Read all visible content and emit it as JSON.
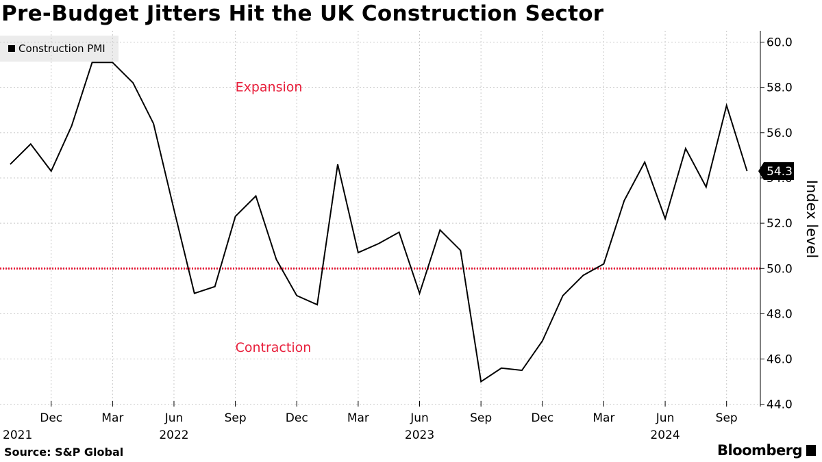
{
  "title": "Pre-Budget Jitters Hit the UK Construction Sector",
  "legend": {
    "label": "Construction PMI"
  },
  "source": "Source: S&P Global",
  "brand": "Bloomberg",
  "colors": {
    "line": "#000000",
    "threshold": "#e8203c",
    "annotation": "#e8203c",
    "grid": "#c8c8c8",
    "legend_bg": "#ececec"
  },
  "chart_data": {
    "type": "line",
    "title": "Pre-Budget Jitters Hit the UK Construction Sector",
    "ylabel": "Index level",
    "xlabel": "",
    "ylim": [
      43.9,
      60.5
    ],
    "y_ticks": [
      44.0,
      46.0,
      48.0,
      50.0,
      52.0,
      54.0,
      56.0,
      58.0,
      60.0
    ],
    "y_tick_labels": [
      "44.0",
      "46.0",
      "48.0",
      "50.0",
      "52.0",
      "54.0",
      "56.0",
      "58.0",
      "60.0"
    ],
    "x_tick_labels": [
      "Dec",
      "Mar",
      "Jun",
      "Sep",
      "Dec",
      "Mar",
      "Jun",
      "Sep",
      "Dec",
      "Mar",
      "Jun",
      "Sep"
    ],
    "x_tick_months": [
      "2021-12",
      "2022-03",
      "2022-06",
      "2022-09",
      "2022-12",
      "2023-03",
      "2023-06",
      "2023-09",
      "2023-12",
      "2024-03",
      "2024-06",
      "2024-09"
    ],
    "year_labels": [
      {
        "label": "2021",
        "month": "2021-12"
      },
      {
        "label": "2022",
        "month": "2022-06"
      },
      {
        "label": "2023",
        "month": "2023-06"
      },
      {
        "label": "2024",
        "month": "2024-06"
      }
    ],
    "x_start": "2021-10",
    "x_end": "2024-10",
    "threshold": 50.0,
    "annotations": [
      {
        "text": "Expansion",
        "month": "2022-09",
        "y": 58.0
      },
      {
        "text": "Contraction",
        "month": "2022-09",
        "y": 46.5
      }
    ],
    "last_value_label": "54.3",
    "series": [
      {
        "name": "Construction PMI",
        "x": [
          "2021-10",
          "2021-11",
          "2021-12",
          "2022-01",
          "2022-02",
          "2022-03",
          "2022-04",
          "2022-05",
          "2022-06",
          "2022-07",
          "2022-08",
          "2022-09",
          "2022-10",
          "2022-11",
          "2022-12",
          "2023-01",
          "2023-02",
          "2023-03",
          "2023-04",
          "2023-05",
          "2023-06",
          "2023-07",
          "2023-08",
          "2023-09",
          "2023-10",
          "2023-11",
          "2023-12",
          "2024-01",
          "2024-02",
          "2024-03",
          "2024-04",
          "2024-05",
          "2024-06",
          "2024-07",
          "2024-08",
          "2024-09",
          "2024-10"
        ],
        "values": [
          54.6,
          55.5,
          54.3,
          56.3,
          59.1,
          59.1,
          58.2,
          56.4,
          52.6,
          48.9,
          49.2,
          52.3,
          53.2,
          50.4,
          48.8,
          48.4,
          54.6,
          50.7,
          51.1,
          51.6,
          48.9,
          51.7,
          50.8,
          45.0,
          45.6,
          45.5,
          46.8,
          48.8,
          49.7,
          50.2,
          53.0,
          54.7,
          52.2,
          55.3,
          53.6,
          57.2,
          54.3
        ]
      }
    ]
  }
}
